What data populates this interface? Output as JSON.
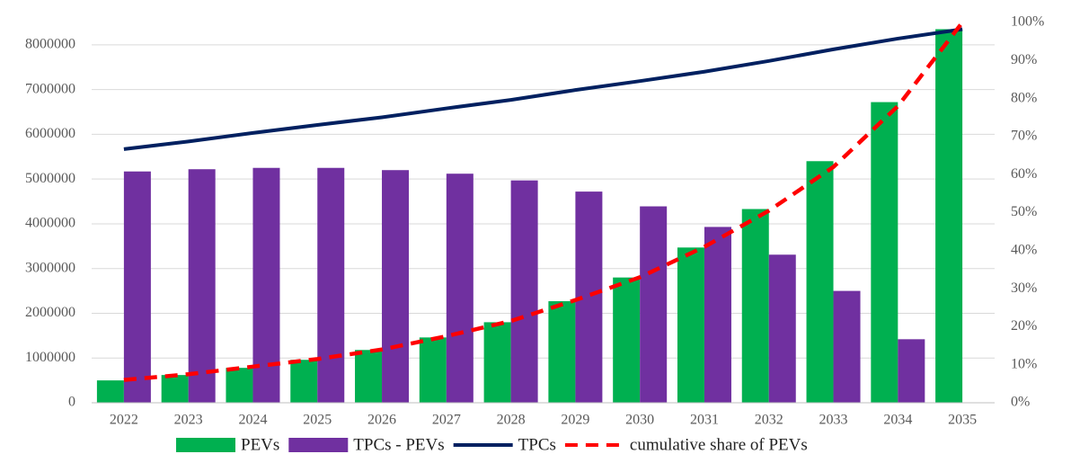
{
  "chart_data": {
    "type": "bar",
    "categories": [
      "2022",
      "2023",
      "2024",
      "2025",
      "2026",
      "2027",
      "2028",
      "2029",
      "2030",
      "2031",
      "2032",
      "2033",
      "2034",
      "2035"
    ],
    "series": [
      {
        "name": "PEVs",
        "type": "bar",
        "color": "#00b050",
        "values": [
          500000,
          620000,
          780000,
          960000,
          1180000,
          1460000,
          1800000,
          2270000,
          2800000,
          3470000,
          4330000,
          5400000,
          6720000,
          8350000
        ]
      },
      {
        "name": "TPCs - PEVs",
        "type": "bar",
        "color": "#7030a0",
        "values": [
          5170000,
          5220000,
          5250000,
          5250000,
          5200000,
          5120000,
          4970000,
          4720000,
          4390000,
          3930000,
          3310000,
          2500000,
          1420000,
          0
        ]
      },
      {
        "name": "TPCs",
        "type": "line",
        "color": "#002060",
        "values": [
          5670000,
          5840000,
          6030000,
          6210000,
          6380000,
          6580000,
          6770000,
          6990000,
          7190000,
          7400000,
          7640000,
          7900000,
          8140000,
          8350000
        ]
      },
      {
        "name": "cumulative share of PEVs",
        "type": "line",
        "dashed": true,
        "axis": "y2",
        "color": "#ff0000",
        "values": [
          6,
          7.5,
          9.5,
          11.5,
          14,
          17.5,
          21.5,
          27,
          33,
          41,
          50.5,
          62,
          78,
          100
        ]
      }
    ],
    "ylim": [
      0,
      8500000
    ],
    "yticks": [
      0,
      1000000,
      2000000,
      3000000,
      4000000,
      5000000,
      6000000,
      7000000,
      8000000
    ],
    "y2lim": [
      0,
      100
    ],
    "y2ticks": [
      {
        "value": 0,
        "label": "0%"
      },
      {
        "value": 10,
        "label": "10%"
      },
      {
        "value": 20,
        "label": "20%"
      },
      {
        "value": 30,
        "label": "30%"
      },
      {
        "value": 40,
        "label": "40%"
      },
      {
        "value": 50,
        "label": "50%"
      },
      {
        "value": 60,
        "label": "60%"
      },
      {
        "value": 70,
        "label": "70%"
      },
      {
        "value": 80,
        "label": "80%"
      },
      {
        "value": 90,
        "label": "90%"
      },
      {
        "value": 100,
        "label": "100%"
      }
    ],
    "grid": true,
    "legend": "bottom"
  }
}
